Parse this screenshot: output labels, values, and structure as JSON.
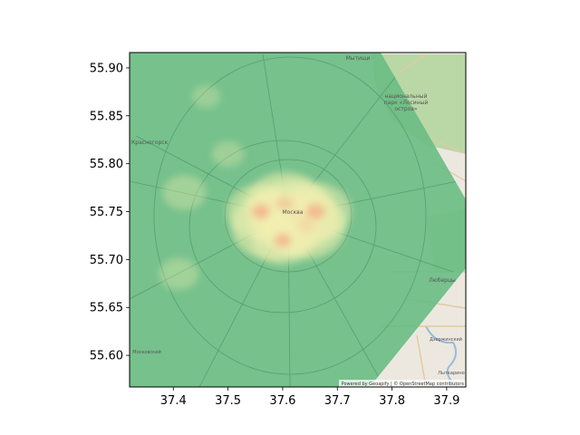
{
  "chart_data": {
    "type": "heatmap",
    "basemap": "map",
    "xlim": [
      37.32,
      37.935
    ],
    "ylim": [
      55.567,
      55.916
    ],
    "x_ticks": [
      {
        "value": 37.4,
        "label": "37.4"
      },
      {
        "value": 37.5,
        "label": "37.5"
      },
      {
        "value": 37.6,
        "label": "37.6"
      },
      {
        "value": 37.7,
        "label": "37.7"
      },
      {
        "value": 37.8,
        "label": "37.8"
      },
      {
        "value": 37.9,
        "label": "37.9"
      }
    ],
    "y_ticks": [
      {
        "value": 55.6,
        "label": "55.60"
      },
      {
        "value": 55.65,
        "label": "55.65"
      },
      {
        "value": 55.7,
        "label": "55.70"
      },
      {
        "value": 55.75,
        "label": "55.75"
      },
      {
        "value": 55.8,
        "label": "55.80"
      },
      {
        "value": 55.85,
        "label": "55.85"
      },
      {
        "value": 55.9,
        "label": "55.90"
      }
    ],
    "colormap": [
      "#5fb87a",
      "#a6d69a",
      "#f2f0b0",
      "#f4b08a",
      "#d9404a"
    ],
    "hotspots": [
      {
        "lon": 37.585,
        "lat": 55.735,
        "intensity": 0.95
      },
      {
        "lon": 37.62,
        "lat": 55.745,
        "intensity": 1.0
      },
      {
        "lon": 37.64,
        "lat": 55.735,
        "intensity": 0.9
      },
      {
        "lon": 37.605,
        "lat": 55.758,
        "intensity": 0.85
      },
      {
        "lon": 37.56,
        "lat": 55.75,
        "intensity": 0.7
      },
      {
        "lon": 37.66,
        "lat": 55.75,
        "intensity": 0.75
      },
      {
        "lon": 37.6,
        "lat": 55.72,
        "intensity": 0.6
      },
      {
        "lon": 37.42,
        "lat": 55.77,
        "intensity": 0.35
      },
      {
        "lon": 37.41,
        "lat": 55.685,
        "intensity": 0.3
      },
      {
        "lon": 37.5,
        "lat": 55.81,
        "intensity": 0.2
      },
      {
        "lon": 37.46,
        "lat": 55.87,
        "intensity": 0.15
      }
    ]
  },
  "map": {
    "labels": [
      {
        "id": "mytishchi",
        "text": "Мытищи"
      },
      {
        "id": "losiny",
        "text": "национальный парк «Лосиный остров»"
      },
      {
        "id": "krasnogorsk",
        "text": "Красногорск"
      },
      {
        "id": "moskva",
        "text": "Москва"
      },
      {
        "id": "lyubertsy",
        "text": "Люберцы"
      },
      {
        "id": "dzerzhinsky",
        "text": "Дзержинский"
      },
      {
        "id": "lytkarino",
        "text": "Лыткарино"
      },
      {
        "id": "moskovsky",
        "text": "Московский"
      }
    ],
    "attribution": "Powered by Geoapify | © OpenStreetMap contributors"
  }
}
